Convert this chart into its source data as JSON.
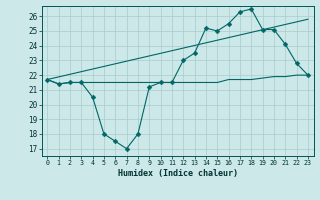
{
  "title": "",
  "xlabel": "Humidex (Indice chaleur)",
  "bg_color": "#cce8e8",
  "grid_color": "#aacccc",
  "line_color": "#006666",
  "xlim": [
    -0.5,
    23.5
  ],
  "ylim": [
    16.5,
    26.7
  ],
  "yticks": [
    17,
    18,
    19,
    20,
    21,
    22,
    23,
    24,
    25,
    26
  ],
  "xticks": [
    0,
    1,
    2,
    3,
    4,
    5,
    6,
    7,
    8,
    9,
    10,
    11,
    12,
    13,
    14,
    15,
    16,
    17,
    18,
    19,
    20,
    21,
    22,
    23
  ],
  "line1_x": [
    0,
    1,
    2,
    3,
    4,
    5,
    6,
    7,
    8,
    9,
    10,
    11,
    12,
    13,
    14,
    15,
    16,
    17,
    18,
    19,
    20,
    21,
    22,
    23
  ],
  "line1_y": [
    21.7,
    21.4,
    21.5,
    21.5,
    20.5,
    18.0,
    17.5,
    17.0,
    18.0,
    21.2,
    21.5,
    21.5,
    23.0,
    23.5,
    25.2,
    25.0,
    25.5,
    26.3,
    26.5,
    25.1,
    25.1,
    24.1,
    22.8,
    22.0
  ],
  "line2_x": [
    0,
    1,
    2,
    3,
    4,
    5,
    6,
    7,
    8,
    9,
    10,
    11,
    12,
    13,
    14,
    15,
    16,
    17,
    18,
    19,
    20,
    21,
    22,
    23
  ],
  "line2_y": [
    21.7,
    21.4,
    21.5,
    21.5,
    21.5,
    21.5,
    21.5,
    21.5,
    21.5,
    21.5,
    21.5,
    21.5,
    21.5,
    21.5,
    21.5,
    21.5,
    21.7,
    21.7,
    21.7,
    21.8,
    21.9,
    21.9,
    22.0,
    22.0
  ],
  "line3_x": [
    0,
    23
  ],
  "line3_y": [
    21.7,
    25.8
  ]
}
